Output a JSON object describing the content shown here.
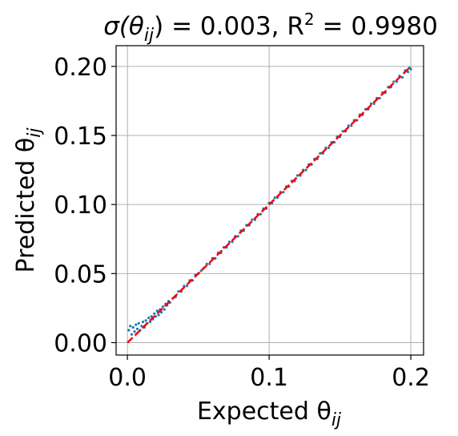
{
  "chart_data": {
    "type": "scatter",
    "title": "σ(θij) = 0.003, R² = 0.9980",
    "title_parts": {
      "prefix": "σ(θ",
      "sub1": "ij",
      "mid": ") = 0.003, R",
      "sup": "2",
      "suffix": " = 0.9980"
    },
    "xlabel": "Expected θij",
    "xlabel_parts": {
      "text": "Expected θ",
      "sub": "ij"
    },
    "ylabel": "Predicted θij",
    "ylabel_parts": {
      "text": "Predicted θ",
      "sub": "ij"
    },
    "xlim": [
      -0.008,
      0.209
    ],
    "ylim": [
      -0.009,
      0.215
    ],
    "x_ticks": [
      0.0,
      0.1,
      0.2
    ],
    "x_tick_labels": [
      "0.0",
      "0.1",
      "0.2"
    ],
    "y_ticks": [
      0.0,
      0.05,
      0.1,
      0.15,
      0.2
    ],
    "y_tick_labels": [
      "0.00",
      "0.05",
      "0.10",
      "0.15",
      "0.20"
    ],
    "grid": true,
    "legend": "none",
    "series": [
      {
        "kind": "scatter",
        "color": "#1f77b4",
        "points": [
          [
            0.001,
            0.009
          ],
          [
            0.002,
            0.012
          ],
          [
            0.003,
            0.006
          ],
          [
            0.004,
            0.011
          ],
          [
            0.005,
            0.008
          ],
          [
            0.006,
            0.013
          ],
          [
            0.007,
            0.01
          ],
          [
            0.008,
            0.014
          ],
          [
            0.009,
            0.009
          ],
          [
            0.01,
            0.012
          ],
          [
            0.011,
            0.015
          ],
          [
            0.012,
            0.011
          ],
          [
            0.013,
            0.016
          ],
          [
            0.014,
            0.014
          ],
          [
            0.015,
            0.018
          ],
          [
            0.016,
            0.015
          ],
          [
            0.017,
            0.019
          ],
          [
            0.018,
            0.017
          ],
          [
            0.019,
            0.021
          ],
          [
            0.02,
            0.019
          ],
          [
            0.021,
            0.023
          ],
          [
            0.022,
            0.02
          ],
          [
            0.023,
            0.024
          ],
          [
            0.024,
            0.022
          ],
          [
            0.025,
            0.026
          ],
          [
            0.026,
            0.024
          ],
          [
            0.027,
            0.028
          ],
          [
            0.028,
            0.027
          ],
          [
            0.029,
            0.03
          ],
          [
            0.03,
            0.029
          ],
          [
            0.032,
            0.032
          ],
          [
            0.034,
            0.033
          ],
          [
            0.036,
            0.037
          ],
          [
            0.038,
            0.037
          ],
          [
            0.04,
            0.041
          ],
          [
            0.042,
            0.041
          ],
          [
            0.044,
            0.045
          ],
          [
            0.046,
            0.045
          ],
          [
            0.048,
            0.049
          ],
          [
            0.05,
            0.05
          ],
          [
            0.052,
            0.052
          ],
          [
            0.054,
            0.054
          ],
          [
            0.056,
            0.057
          ],
          [
            0.058,
            0.057
          ],
          [
            0.06,
            0.061
          ],
          [
            0.062,
            0.061
          ],
          [
            0.064,
            0.065
          ],
          [
            0.066,
            0.065
          ],
          [
            0.068,
            0.069
          ],
          [
            0.07,
            0.069
          ],
          [
            0.072,
            0.073
          ],
          [
            0.074,
            0.073
          ],
          [
            0.076,
            0.077
          ],
          [
            0.078,
            0.077
          ],
          [
            0.08,
            0.081
          ],
          [
            0.082,
            0.081
          ],
          [
            0.084,
            0.085
          ],
          [
            0.086,
            0.085
          ],
          [
            0.088,
            0.089
          ],
          [
            0.09,
            0.089
          ],
          [
            0.092,
            0.093
          ],
          [
            0.094,
            0.093
          ],
          [
            0.096,
            0.097
          ],
          [
            0.098,
            0.097
          ],
          [
            0.1,
            0.101
          ],
          [
            0.102,
            0.101
          ],
          [
            0.104,
            0.105
          ],
          [
            0.106,
            0.105
          ],
          [
            0.108,
            0.109
          ],
          [
            0.11,
            0.109
          ],
          [
            0.112,
            0.113
          ],
          [
            0.114,
            0.113
          ],
          [
            0.116,
            0.117
          ],
          [
            0.118,
            0.117
          ],
          [
            0.12,
            0.121
          ],
          [
            0.122,
            0.121
          ],
          [
            0.124,
            0.125
          ],
          [
            0.126,
            0.125
          ],
          [
            0.128,
            0.129
          ],
          [
            0.13,
            0.129
          ],
          [
            0.132,
            0.133
          ],
          [
            0.134,
            0.133
          ],
          [
            0.136,
            0.137
          ],
          [
            0.138,
            0.137
          ],
          [
            0.14,
            0.141
          ],
          [
            0.142,
            0.141
          ],
          [
            0.144,
            0.145
          ],
          [
            0.146,
            0.145
          ],
          [
            0.148,
            0.149
          ],
          [
            0.15,
            0.149
          ],
          [
            0.152,
            0.153
          ],
          [
            0.154,
            0.153
          ],
          [
            0.156,
            0.157
          ],
          [
            0.158,
            0.157
          ],
          [
            0.16,
            0.161
          ],
          [
            0.162,
            0.161
          ],
          [
            0.164,
            0.165
          ],
          [
            0.166,
            0.165
          ],
          [
            0.168,
            0.169
          ],
          [
            0.17,
            0.169
          ],
          [
            0.172,
            0.173
          ],
          [
            0.174,
            0.173
          ],
          [
            0.176,
            0.177
          ],
          [
            0.178,
            0.177
          ],
          [
            0.18,
            0.181
          ],
          [
            0.182,
            0.181
          ],
          [
            0.184,
            0.185
          ],
          [
            0.186,
            0.185
          ],
          [
            0.188,
            0.189
          ],
          [
            0.19,
            0.189
          ],
          [
            0.192,
            0.193
          ],
          [
            0.194,
            0.192
          ],
          [
            0.196,
            0.197
          ],
          [
            0.198,
            0.196
          ],
          [
            0.199,
            0.199
          ],
          [
            0.2,
            0.198
          ]
        ]
      },
      {
        "kind": "line",
        "style": "dashed",
        "color": "#ff0000",
        "x": [
          0.0,
          0.2
        ],
        "y": [
          0.0,
          0.2
        ]
      }
    ]
  }
}
